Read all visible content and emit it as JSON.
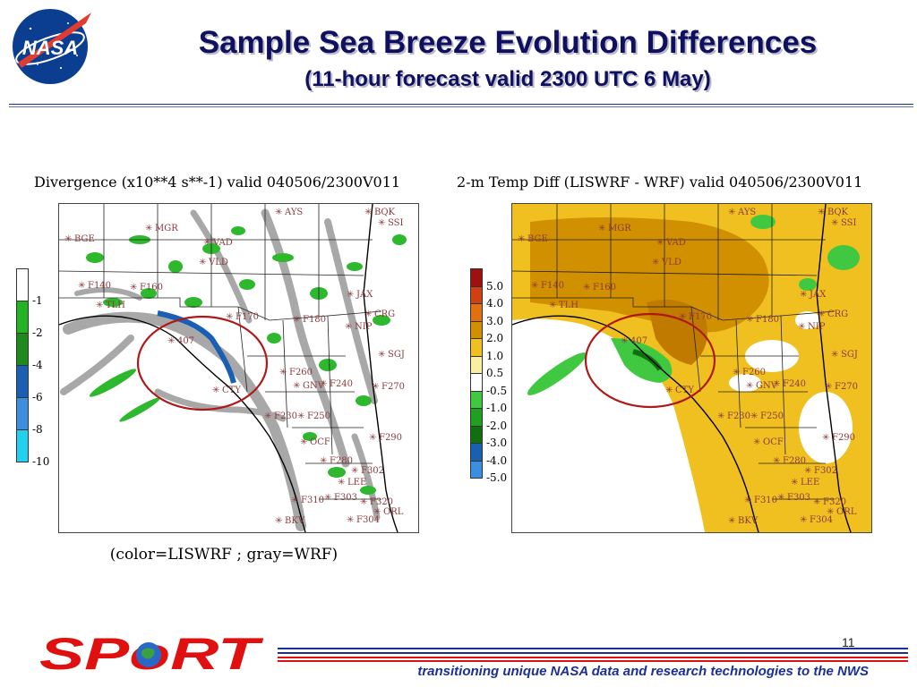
{
  "header": {
    "logo_text": "NASA",
    "title": "Sample Sea Breeze Evolution Differences",
    "subtitle": "(11-hour forecast valid 2300 UTC 6 May)"
  },
  "left_panel": {
    "title": "Divergence (x10**4 s**-1) valid 040506/2300V011",
    "colorbar_labels": [
      "-1",
      "-2",
      "-4",
      "-6",
      "-8",
      "-10"
    ],
    "colors": [
      "#ffffff",
      "#22b422",
      "#1c8a1c",
      "#1a5fb4",
      "#3c8fe0",
      "#22d0f0"
    ],
    "caption": "(color=LISWRF ; gray=WRF)"
  },
  "right_panel": {
    "title": "2-m Temp Diff (LISWRF - WRF) valid 040506/2300V011",
    "colorbar_labels": [
      "5.0",
      "4.0",
      "3.0",
      "2.0",
      "1.0",
      "0.5",
      "-0.5",
      "-1.0",
      "-2.0",
      "-3.0",
      "-4.0",
      "-5.0"
    ],
    "colors": [
      "#a01010",
      "#d04010",
      "#e07010",
      "#d09000",
      "#f0c020",
      "#f8f0a0",
      "#ffffff",
      "#40c840",
      "#20a020",
      "#107010",
      "#1a60b0",
      "#3a90e0"
    ]
  },
  "stations": {
    "left": [
      "BGE",
      "MGR",
      "VAD",
      "VLD",
      "F140",
      "F160",
      "TLH",
      "F170",
      "F180",
      "JAX",
      "CRG",
      "NIP",
      "407",
      "SGJ",
      "F260",
      "GNV",
      "F240",
      "F270",
      "CTY",
      "F230",
      "F250",
      "OCF",
      "F290",
      "F280",
      "F302",
      "LEE",
      "F310",
      "F303",
      "F320",
      "ORL",
      "BKV",
      "F304",
      "AYS",
      "BQK",
      "SSI"
    ],
    "right": [
      "BGE",
      "MGR",
      "VAD",
      "VLD",
      "F140",
      "F160",
      "TLH",
      "F170",
      "F180",
      "JAX",
      "CRG",
      "NIP",
      "407",
      "SGJ",
      "F260",
      "GNV",
      "F240",
      "F270",
      "CTY",
      "F230",
      "F250",
      "OCF",
      "F290",
      "F280",
      "F302",
      "LEE",
      "F310",
      "F303",
      "F320",
      "ORL",
      "BKV",
      "F304",
      "AYS",
      "BQK",
      "SSI"
    ]
  },
  "footer": {
    "logo_text": "SPoRT",
    "tagline": "transitioning unique NASA data and research technologies to the NWS",
    "page_number": "11"
  }
}
